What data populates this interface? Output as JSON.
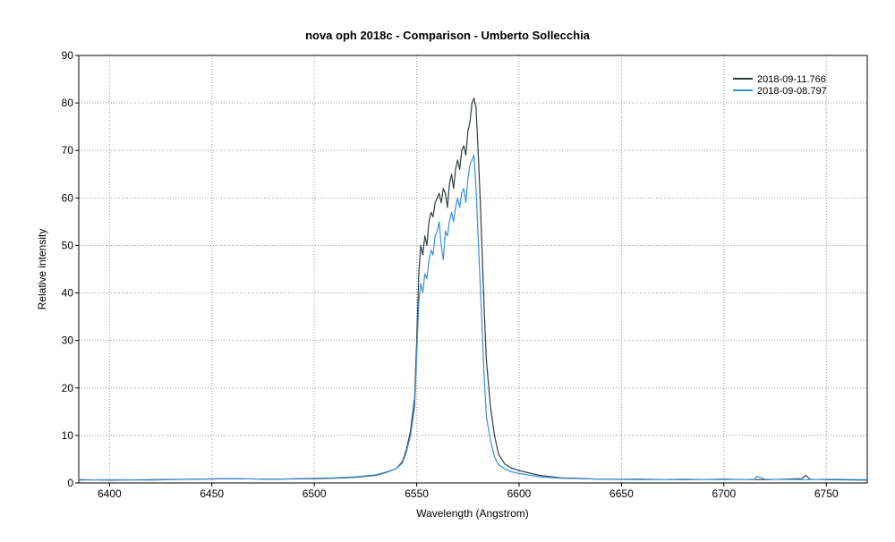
{
  "chart_data": {
    "type": "line",
    "title": "nova oph 2018c -  Comparison - Umberto Sollecchia",
    "xlabel": "Wavelength (Angstrom)",
    "ylabel": "Relative intensity",
    "xlim": [
      6385,
      6770
    ],
    "ylim": [
      0,
      90
    ],
    "xticks": [
      6400,
      6450,
      6500,
      6550,
      6600,
      6650,
      6700,
      6750
    ],
    "yticks": [
      0,
      10,
      20,
      30,
      40,
      50,
      60,
      70,
      80,
      90
    ],
    "grid": true,
    "legend_position": "top-right",
    "series": [
      {
        "name": "2018-09-11.766",
        "color": "#2f3f3f",
        "x": [
          6385,
          6400,
          6420,
          6440,
          6460,
          6480,
          6500,
          6510,
          6520,
          6530,
          6535,
          6540,
          6543,
          6545,
          6547,
          6549,
          6550,
          6551,
          6552,
          6553,
          6554,
          6555,
          6556,
          6557,
          6558,
          6559,
          6560,
          6561,
          6562,
          6563,
          6564,
          6565,
          6566,
          6567,
          6568,
          6569,
          6570,
          6571,
          6572,
          6573,
          6574,
          6575,
          6576,
          6577,
          6578,
          6579,
          6580,
          6581,
          6582,
          6583,
          6584,
          6586,
          6588,
          6590,
          6593,
          6596,
          6600,
          6610,
          6620,
          6640,
          6660,
          6680,
          6700,
          6720,
          6738,
          6740,
          6742,
          6750,
          6770
        ],
        "values": [
          0.7,
          0.6,
          0.7,
          0.8,
          0.9,
          0.8,
          0.9,
          1.0,
          1.2,
          1.6,
          2.2,
          3.0,
          4.5,
          7,
          11,
          18,
          30,
          44,
          50,
          48,
          52,
          50,
          55,
          57,
          56,
          59,
          60,
          61,
          59,
          62,
          61,
          58,
          63,
          65,
          62,
          66,
          68,
          66,
          70,
          71,
          69,
          74,
          76,
          80,
          81,
          79,
          70,
          60,
          48,
          36,
          26,
          16,
          10,
          6.0,
          4.0,
          3.2,
          2.6,
          1.6,
          1.1,
          0.8,
          0.8,
          0.7,
          0.8,
          0.7,
          0.9,
          1.6,
          0.8,
          0.7,
          0.6
        ]
      },
      {
        "name": "2018-09-08.797",
        "color": "#3a8fdc",
        "x": [
          6385,
          6400,
          6420,
          6440,
          6460,
          6480,
          6500,
          6510,
          6520,
          6530,
          6535,
          6540,
          6543,
          6545,
          6547,
          6549,
          6550,
          6551,
          6552,
          6553,
          6554,
          6555,
          6556,
          6557,
          6558,
          6559,
          6560,
          6561,
          6562,
          6563,
          6564,
          6565,
          6566,
          6567,
          6568,
          6569,
          6570,
          6571,
          6572,
          6573,
          6574,
          6575,
          6576,
          6577,
          6578,
          6579,
          6580,
          6581,
          6582,
          6583,
          6584,
          6586,
          6588,
          6590,
          6593,
          6596,
          6600,
          6610,
          6620,
          6640,
          6660,
          6680,
          6700,
          6715,
          6716,
          6720,
          6740,
          6750,
          6770
        ],
        "values": [
          0.6,
          0.7,
          0.6,
          0.8,
          0.9,
          0.8,
          1.0,
          1.1,
          1.3,
          1.7,
          2.3,
          3.0,
          4.2,
          6.5,
          10,
          16,
          27,
          38,
          42,
          40,
          44,
          43,
          47,
          49,
          48,
          52,
          53,
          55,
          50,
          47,
          53,
          52,
          55,
          57,
          55,
          58,
          60,
          58,
          61,
          62,
          59,
          64,
          67,
          68,
          69,
          62,
          52,
          42,
          32,
          22,
          14,
          9,
          5.5,
          3.8,
          3.0,
          2.4,
          2.0,
          1.3,
          1.0,
          0.8,
          0.7,
          0.8,
          0.7,
          0.8,
          1.4,
          0.8,
          0.7,
          0.8,
          0.7
        ]
      }
    ]
  }
}
